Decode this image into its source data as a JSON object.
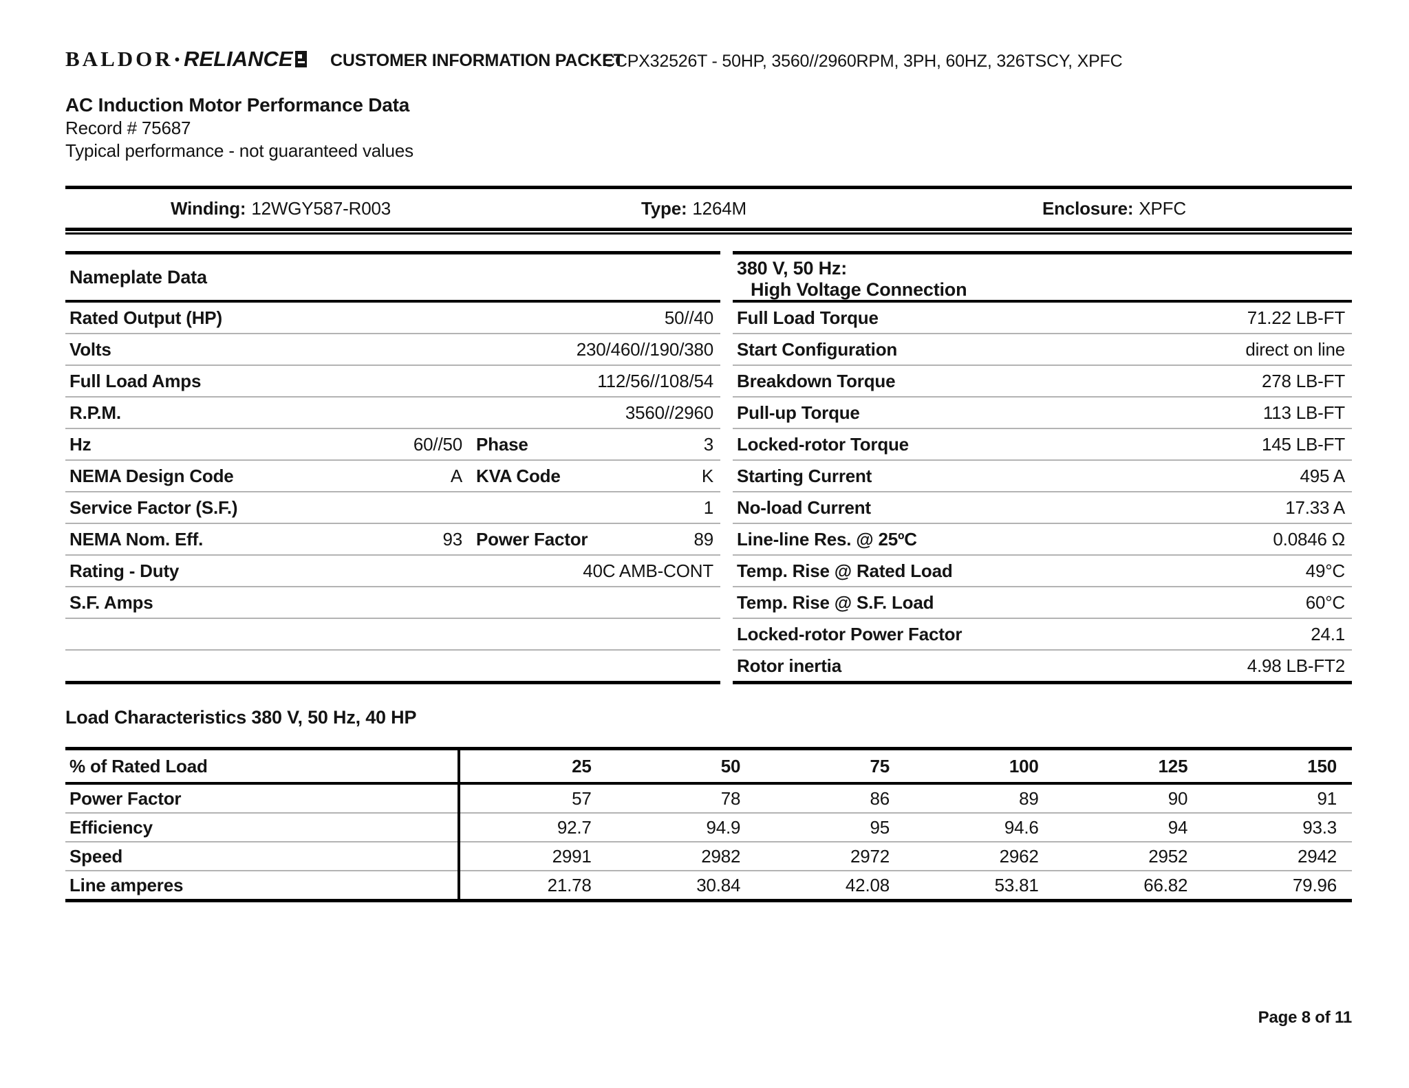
{
  "header": {
    "logo_brand1": "BALDOR",
    "logo_separator": "•",
    "logo_brand2": "RELIANCE",
    "packet_title": "CUSTOMER INFORMATION PACKET",
    "model": "CCPX32526T - 50HP, 3560//2960RPM, 3PH, 60HZ, 326TSCY, XPFC"
  },
  "title_block": {
    "title": "AC Induction Motor Performance Data",
    "record": "Record # 75687",
    "note": "Typical performance - not guaranteed values"
  },
  "winding_bar": {
    "winding_label": "Winding:",
    "winding_value": "12WGY587-R003",
    "type_label": "Type:",
    "type_value": "1264M",
    "enclosure_label": "Enclosure:",
    "enclosure_value": "XPFC"
  },
  "nameplate": {
    "title": "Nameplate Data",
    "rows": [
      {
        "label": "Rated Output (HP)",
        "value": "50//40"
      },
      {
        "label": "Volts",
        "value": "230/460//190/380"
      },
      {
        "label": "Full Load Amps",
        "value": "112/56//108/54"
      },
      {
        "label": "R.P.M.",
        "value": "3560//2960"
      },
      {
        "label": "Hz",
        "value": "60//50",
        "label2": "Phase",
        "value2": "3"
      },
      {
        "label": "NEMA Design Code",
        "value": "A",
        "label2": "KVA Code",
        "value2": "K"
      },
      {
        "label": "Service Factor (S.F.)",
        "value": "1"
      },
      {
        "label": "NEMA Nom. Eff.",
        "value": "93",
        "label2": "Power Factor",
        "value2": "89"
      },
      {
        "label": "Rating - Duty",
        "value": "40C AMB-CONT"
      },
      {
        "label": "S.F. Amps",
        "value": ""
      },
      {
        "label": "",
        "value": ""
      },
      {
        "label": "",
        "value": ""
      }
    ]
  },
  "hv_table": {
    "title_line1": "380 V, 50 Hz:",
    "title_line2": "High Voltage Connection",
    "rows": [
      {
        "label": "Full Load Torque",
        "value": "71.22 LB-FT"
      },
      {
        "label": "Start Configuration",
        "value": "direct on line"
      },
      {
        "label": "Breakdown Torque",
        "value": "278 LB-FT"
      },
      {
        "label": "Pull-up Torque",
        "value": "113 LB-FT"
      },
      {
        "label": "Locked-rotor Torque",
        "value": "145 LB-FT"
      },
      {
        "label": "Starting Current",
        "value": "495 A"
      },
      {
        "label": "No-load Current",
        "value": "17.33 A"
      },
      {
        "label": "Line-line Res. @ 25ºC",
        "value": "0.0846 Ω"
      },
      {
        "label": "Temp. Rise @ Rated Load",
        "value": "49°C"
      },
      {
        "label": "Temp. Rise @ S.F. Load",
        "value": "60°C"
      },
      {
        "label": "Locked-rotor Power Factor",
        "value": "24.1"
      },
      {
        "label": "Rotor inertia",
        "value": "4.98 LB-FT2"
      }
    ]
  },
  "load_section": {
    "title": "Load Characteristics 380 V, 50 Hz, 40 HP",
    "header_label": "% of Rated Load",
    "columns": [
      "25",
      "50",
      "75",
      "100",
      "125",
      "150"
    ],
    "rows": [
      {
        "label": "Power Factor",
        "values": [
          "57",
          "78",
          "86",
          "89",
          "90",
          "91"
        ]
      },
      {
        "label": "Efficiency",
        "values": [
          "92.7",
          "94.9",
          "95",
          "94.6",
          "94",
          "93.3"
        ]
      },
      {
        "label": "Speed",
        "values": [
          "2991",
          "2982",
          "2972",
          "2962",
          "2952",
          "2942"
        ]
      },
      {
        "label": "Line amperes",
        "values": [
          "21.78",
          "30.84",
          "42.08",
          "53.81",
          "66.82",
          "79.96"
        ]
      }
    ]
  },
  "footer": {
    "page": "Page 8 of 11"
  }
}
